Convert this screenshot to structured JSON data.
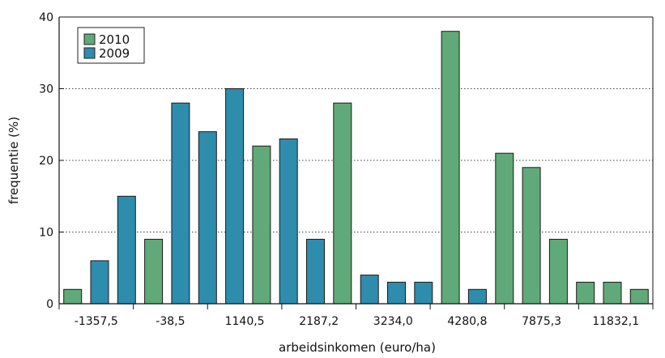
{
  "chart_data": {
    "type": "bar",
    "title": "",
    "xlabel": "arbeidsinkomen (euro/ha)",
    "ylabel": "frequentie (%)",
    "ylim": [
      0,
      40
    ],
    "yticks": [
      0,
      10,
      20,
      30,
      40
    ],
    "grid": "horizontal dotted",
    "legend_position": "top-left",
    "x_tick_labels": [
      "-1357,5",
      "-38,5",
      "1140,5",
      "2187,2",
      "3234,0",
      "4280,8",
      "7875,3",
      "11832,1"
    ],
    "series_colors": {
      "2010": "#5faa78",
      "2009": "#2e8cad"
    },
    "legend": [
      {
        "name": "2010",
        "color": "#5faa78"
      },
      {
        "name": "2009",
        "color": "#2e8cad"
      }
    ],
    "bars": [
      {
        "series": "2010",
        "value": 2
      },
      {
        "series": "2009",
        "value": 6
      },
      {
        "series": "2009",
        "value": 15
      },
      {
        "series": "2010",
        "value": 9
      },
      {
        "series": "2009",
        "value": 28
      },
      {
        "series": "2009",
        "value": 24
      },
      {
        "series": "2009",
        "value": 30
      },
      {
        "series": "2010",
        "value": 22
      },
      {
        "series": "2009",
        "value": 23
      },
      {
        "series": "2009",
        "value": 9
      },
      {
        "series": "2010",
        "value": 28
      },
      {
        "series": "2009",
        "value": 4
      },
      {
        "series": "2009",
        "value": 3
      },
      {
        "series": "2009",
        "value": 3
      },
      {
        "series": "2010",
        "value": 38
      },
      {
        "series": "2009",
        "value": 2
      },
      {
        "series": "2010",
        "value": 21
      },
      {
        "series": "2010",
        "value": 19
      },
      {
        "series": "2010",
        "value": 9
      },
      {
        "series": "2010",
        "value": 3
      },
      {
        "series": "2010",
        "value": 3
      },
      {
        "series": "2010",
        "value": 2
      }
    ]
  }
}
